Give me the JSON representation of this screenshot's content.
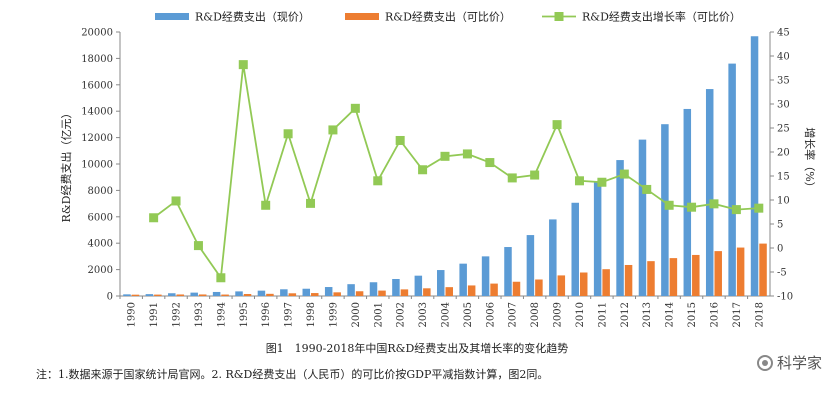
{
  "chart_data": {
    "type": "bar",
    "categories": [
      "1990",
      "1991",
      "1992",
      "1993",
      "1994",
      "1995",
      "1996",
      "1997",
      "1998",
      "1999",
      "2000",
      "2001",
      "2002",
      "2003",
      "2004",
      "2005",
      "2006",
      "2007",
      "2008",
      "2009",
      "2010",
      "2011",
      "2012",
      "2013",
      "2014",
      "2015",
      "2016",
      "2017",
      "2018"
    ],
    "series": [
      {
        "name": "R&D经费支出（现价）",
        "kind": "bar",
        "axis": "left",
        "color": "#5b9bd5",
        "values": [
          125,
          142,
          209,
          256,
          306,
          349,
          405,
          509,
          551,
          679,
          896,
          1042,
          1288,
          1540,
          1966,
          2450,
          3003,
          3710,
          4616,
          5802,
          7063,
          8687,
          10298,
          11847,
          13016,
          14170,
          15677,
          17606,
          19678
        ]
      },
      {
        "name": "R&D经费支出（可比价）",
        "kind": "bar",
        "axis": "left",
        "color": "#ed7d31",
        "values": [
          100,
          106,
          116,
          117,
          110,
          152,
          165,
          205,
          223,
          278,
          360,
          410,
          502,
          583,
          670,
          800,
          940,
          1080,
          1250,
          1560,
          1780,
          2030,
          2350,
          2640,
          2870,
          3110,
          3400,
          3670,
          3970
        ]
      },
      {
        "name": "R&D经费支出增长率（可比价）",
        "kind": "line",
        "axis": "right",
        "color": "#92c955",
        "values": [
          null,
          6.3,
          9.8,
          0.5,
          -6.2,
          38.2,
          8.9,
          23.8,
          9.3,
          24.6,
          29.1,
          14.0,
          22.4,
          16.3,
          19.1,
          19.6,
          17.8,
          14.6,
          15.2,
          25.7,
          14.0,
          13.7,
          15.4,
          12.2,
          8.9,
          8.5,
          9.2,
          8.0,
          8.3
        ]
      }
    ],
    "yticks_left": [
      "0",
      "2000",
      "4000",
      "6000",
      "8000",
      "10000",
      "12000",
      "14000",
      "16000",
      "18000",
      "20000"
    ],
    "ylim_left": [
      0,
      20000
    ],
    "yticks_right": [
      "-10",
      "-5",
      "0",
      "5",
      "10",
      "15",
      "20",
      "25",
      "30",
      "35",
      "40",
      "45"
    ],
    "ylim_right": [
      -10,
      45
    ],
    "ylabel_left": "R&D经费支出（亿元）",
    "ylabel_right": "增长率（%）",
    "legend_placement": "top"
  },
  "caption": "图1　1990-2018年中国R&D经费支出及其增长率的变化趋势",
  "note": "注：1.数据来源于国家统计局官网。2. R&D经费支出（人民币）的可比价按GDP平减指数计算，图2同。",
  "brand": "科学家"
}
